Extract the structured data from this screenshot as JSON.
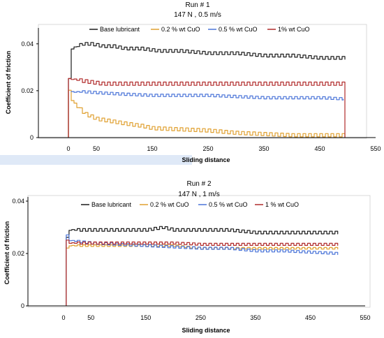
{
  "colors": {
    "base": "#1a1a1a",
    "cuo_02": "#e0a030",
    "cuo_05": "#4a74d8",
    "cuo_1": "#b02a2a"
  },
  "chart_data": [
    {
      "type": "line",
      "title": "Run # 1",
      "subtitle": "147 N , 0.5 m/s",
      "xlabel": "Sliding distance",
      "ylabel": "Coefficient of friction",
      "xlim": [
        -50,
        550
      ],
      "ylim": [
        0,
        0.045
      ],
      "xticks": [
        0,
        50,
        150,
        250,
        350,
        450,
        550
      ],
      "xtick_labels": [
        "0",
        "50",
        "150",
        "250",
        "350",
        "450",
        "550"
      ],
      "yticks": [
        0,
        0.02,
        0.04
      ],
      "ytick_labels": [
        "0",
        "0.02",
        "0.04"
      ],
      "legend": "top",
      "series": [
        {
          "name": "Base lubricant",
          "color_key": "base",
          "x": [
            0,
            0,
            3,
            5,
            15,
            25,
            40,
            60,
            80,
            100,
            130,
            160,
            200,
            250,
            300,
            350,
            400,
            450,
            495
          ],
          "y": [
            0,
            0.025,
            0.033,
            0.038,
            0.039,
            0.04,
            0.04,
            0.039,
            0.039,
            0.038,
            0.038,
            0.037,
            0.037,
            0.036,
            0.036,
            0.035,
            0.035,
            0.034,
            0.034
          ],
          "amp": 0.0006
        },
        {
          "name": "0.2 % wt CuO",
          "color_key": "cuo_02",
          "x": [
            0,
            0,
            5,
            15,
            30,
            50,
            75,
            100,
            130,
            150,
            200,
            250,
            300,
            350,
            400,
            450,
            495,
            495
          ],
          "y": [
            0,
            0.02,
            0.016,
            0.013,
            0.01,
            0.008,
            0.007,
            0.006,
            0.005,
            0.004,
            0.0035,
            0.003,
            0.002,
            0.0015,
            0.001,
            0.001,
            0.001,
            0
          ],
          "amp": 0.0007
        },
        {
          "name": "0.5 % wt CuO",
          "color_key": "cuo_05",
          "x": [
            5,
            5,
            30,
            60,
            100,
            150,
            200,
            250,
            300,
            350,
            400,
            450,
            492
          ],
          "y": [
            0.0195,
            0.0195,
            0.0195,
            0.019,
            0.0185,
            0.018,
            0.018,
            0.018,
            0.0175,
            0.017,
            0.017,
            0.017,
            0.0165
          ],
          "amp": 0.0005
        },
        {
          "name": "1% wt CuO",
          "color_key": "cuo_1",
          "x": [
            0,
            0,
            5,
            30,
            60,
            100,
            150,
            200,
            250,
            300,
            350,
            400,
            450,
            495,
            495
          ],
          "y": [
            0,
            0.025,
            0.025,
            0.024,
            0.023,
            0.023,
            0.023,
            0.023,
            0.023,
            0.023,
            0.023,
            0.023,
            0.023,
            0.023,
            0
          ],
          "amp": 0.0007
        }
      ]
    },
    {
      "type": "line",
      "title": "Run # 2",
      "subtitle": "147 N , 1 m/s",
      "xlabel": "Sliding distance",
      "ylabel": "Coefficient of friction",
      "xlim": [
        -50,
        550
      ],
      "ylim": [
        0,
        0.04
      ],
      "xticks": [
        0,
        50,
        150,
        250,
        350,
        450,
        550
      ],
      "xtick_labels": [
        "0",
        "50",
        "150",
        "250",
        "350",
        "450",
        "550"
      ],
      "yticks": [
        0,
        0.02,
        0.04
      ],
      "ytick_labels": [
        "0",
        "0.02",
        "0.04"
      ],
      "legend": "top",
      "series": [
        {
          "name": "Base lubricant",
          "color_key": "base",
          "x": [
            5,
            5,
            10,
            50,
            100,
            150,
            180,
            200,
            250,
            300,
            350,
            400,
            450,
            500
          ],
          "y": [
            0,
            0.026,
            0.029,
            0.029,
            0.029,
            0.029,
            0.03,
            0.029,
            0.029,
            0.029,
            0.028,
            0.028,
            0.028,
            0.028
          ],
          "amp": 0.0005
        },
        {
          "name": "0.2 % wt CuO",
          "color_key": "cuo_02",
          "x": [
            5,
            5,
            10,
            50,
            100,
            150,
            200,
            250,
            300,
            350,
            400,
            450,
            500
          ],
          "y": [
            0,
            0.022,
            0.023,
            0.023,
            0.023,
            0.023,
            0.023,
            0.022,
            0.022,
            0.022,
            0.022,
            0.022,
            0.022
          ],
          "amp": 0.0003
        },
        {
          "name": "0.5 % wt CuO",
          "color_key": "cuo_05",
          "x": [
            5,
            5,
            10,
            50,
            100,
            150,
            200,
            250,
            300,
            350,
            400,
            450,
            500
          ],
          "y": [
            0,
            0.027,
            0.025,
            0.024,
            0.0235,
            0.023,
            0.0225,
            0.022,
            0.022,
            0.021,
            0.021,
            0.0205,
            0.02
          ],
          "amp": 0.0004
        },
        {
          "name": "1 % wt CuO",
          "color_key": "cuo_1",
          "x": [
            5,
            5,
            10,
            50,
            100,
            150,
            200,
            250,
            300,
            350,
            400,
            450,
            500
          ],
          "y": [
            0,
            0.025,
            0.024,
            0.024,
            0.024,
            0.024,
            0.024,
            0.0235,
            0.0235,
            0.0235,
            0.0235,
            0.0235,
            0.0235
          ],
          "amp": 0.0004
        }
      ]
    }
  ]
}
